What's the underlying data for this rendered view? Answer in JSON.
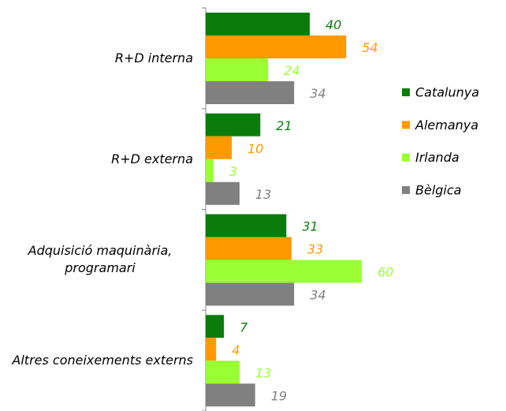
{
  "chart_data": {
    "type": "bar",
    "orientation": "horizontal",
    "categories": [
      "R+D interna",
      "R+D externa",
      "Adquisició maquinària, programari",
      "Altres coneixements externs"
    ],
    "series": [
      {
        "name": "Catalunya",
        "color": "#0b7c0b",
        "values": [
          40,
          21,
          31,
          7
        ]
      },
      {
        "name": "Alemanya",
        "color": "#ff9900",
        "values": [
          54,
          10,
          33,
          4
        ]
      },
      {
        "name": "Irlanda",
        "color": "#99ff33",
        "values": [
          24,
          3,
          60,
          13
        ]
      },
      {
        "name": "Bèlgica",
        "color": "#808080",
        "values": [
          34,
          13,
          34,
          19
        ]
      }
    ],
    "legend": "right"
  }
}
